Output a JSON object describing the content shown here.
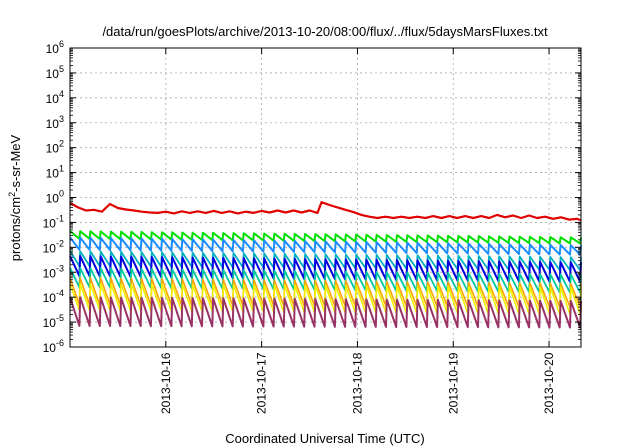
{
  "chart_data": {
    "type": "line",
    "title": "/data/run/goesPlots/archive/2013-10-20/08:00/flux/../flux/5daysMarsFluxes.txt",
    "xlabel": "Coordinated Universal Time (UTC)",
    "ylabel": {
      "prefix": "protons/cm",
      "sup": "2",
      "suffix": "-s-sr-MeV"
    },
    "y_scale": "log",
    "ylim": [
      1e-06,
      1000000.0
    ],
    "y_ticks": [
      {
        "base": "10",
        "exp": "-6"
      },
      {
        "base": "10",
        "exp": "-5"
      },
      {
        "base": "10",
        "exp": "-4"
      },
      {
        "base": "10",
        "exp": "-3"
      },
      {
        "base": "10",
        "exp": "-2"
      },
      {
        "base": "10",
        "exp": "-1"
      },
      {
        "base": "10",
        "exp": "0"
      },
      {
        "base": "10",
        "exp": "1"
      },
      {
        "base": "10",
        "exp": "2"
      },
      {
        "base": "10",
        "exp": "3"
      },
      {
        "base": "10",
        "exp": "4"
      },
      {
        "base": "10",
        "exp": "5"
      },
      {
        "base": "10",
        "exp": "6"
      }
    ],
    "xlim": [
      "2013-10-15T00:00",
      "2013-10-20T08:00"
    ],
    "x_ticks": [
      "2013-10-16",
      "2013-10-17",
      "2013-10-18",
      "2013-10-19",
      "2013-10-20"
    ],
    "grid": true,
    "series": [
      {
        "color": "#e00000",
        "width": 2.2,
        "points": [
          [
            "2013-10-15T00:00",
            0.6
          ],
          [
            "2013-10-15T02:00",
            0.4
          ],
          [
            "2013-10-15T04:00",
            0.3
          ],
          [
            "2013-10-15T06:00",
            0.32
          ],
          [
            "2013-10-15T08:00",
            0.27
          ],
          [
            "2013-10-15T10:00",
            0.55
          ],
          [
            "2013-10-15T12:00",
            0.38
          ],
          [
            "2013-10-15T14:00",
            0.33
          ],
          [
            "2013-10-15T16:00",
            0.3
          ],
          [
            "2013-10-15T18:00",
            0.27
          ],
          [
            "2013-10-15T20:00",
            0.25
          ],
          [
            "2013-10-15T22:00",
            0.24
          ],
          [
            "2013-10-16T00:00",
            0.27
          ],
          [
            "2013-10-16T02:00",
            0.23
          ],
          [
            "2013-10-16T04:00",
            0.28
          ],
          [
            "2013-10-16T06:00",
            0.24
          ],
          [
            "2013-10-16T08:00",
            0.28
          ],
          [
            "2013-10-16T10:00",
            0.24
          ],
          [
            "2013-10-16T12:00",
            0.29
          ],
          [
            "2013-10-16T14:00",
            0.24
          ],
          [
            "2013-10-16T16:00",
            0.28
          ],
          [
            "2013-10-16T18:00",
            0.23
          ],
          [
            "2013-10-16T20:00",
            0.27
          ],
          [
            "2013-10-16T22:00",
            0.24
          ],
          [
            "2013-10-17T00:00",
            0.29
          ],
          [
            "2013-10-17T02:00",
            0.25
          ],
          [
            "2013-10-17T04:00",
            0.3
          ],
          [
            "2013-10-17T06:00",
            0.25
          ],
          [
            "2013-10-17T08:00",
            0.3
          ],
          [
            "2013-10-17T10:00",
            0.25
          ],
          [
            "2013-10-17T12:00",
            0.3
          ],
          [
            "2013-10-17T14:00",
            0.24
          ],
          [
            "2013-10-17T15:00",
            0.65
          ],
          [
            "2013-10-17T17:00",
            0.5
          ],
          [
            "2013-10-17T19:00",
            0.4
          ],
          [
            "2013-10-17T21:00",
            0.32
          ],
          [
            "2013-10-17T23:00",
            0.26
          ],
          [
            "2013-10-18T01:00",
            0.2
          ],
          [
            "2013-10-18T03:00",
            0.17
          ],
          [
            "2013-10-18T05:00",
            0.15
          ],
          [
            "2013-10-18T07:00",
            0.17
          ],
          [
            "2013-10-18T09:00",
            0.15
          ],
          [
            "2013-10-18T11:00",
            0.17
          ],
          [
            "2013-10-18T13:00",
            0.15
          ],
          [
            "2013-10-18T15:00",
            0.17
          ],
          [
            "2013-10-18T17:00",
            0.15
          ],
          [
            "2013-10-18T19:00",
            0.18
          ],
          [
            "2013-10-18T21:00",
            0.15
          ],
          [
            "2013-10-18T23:00",
            0.18
          ],
          [
            "2013-10-19T01:00",
            0.15
          ],
          [
            "2013-10-19T03:00",
            0.18
          ],
          [
            "2013-10-19T05:00",
            0.15
          ],
          [
            "2013-10-19T07:00",
            0.18
          ],
          [
            "2013-10-19T09:00",
            0.15
          ],
          [
            "2013-10-19T11:00",
            0.2
          ],
          [
            "2013-10-19T13:00",
            0.16
          ],
          [
            "2013-10-19T15:00",
            0.19
          ],
          [
            "2013-10-19T17:00",
            0.15
          ],
          [
            "2013-10-19T19:00",
            0.19
          ],
          [
            "2013-10-19T21:00",
            0.15
          ],
          [
            "2013-10-19T23:00",
            0.17
          ],
          [
            "2013-10-20T01:00",
            0.14
          ],
          [
            "2013-10-20T03:00",
            0.16
          ],
          [
            "2013-10-20T05:00",
            0.13
          ],
          [
            "2013-10-20T07:00",
            0.14
          ],
          [
            "2013-10-20T08:00",
            0.12
          ]
        ]
      },
      {
        "color": "#00e000",
        "lo": 0.022,
        "hi": 0.045,
        "lo_end": 0.014,
        "hi_end": 0.025,
        "width": 2
      },
      {
        "color": "#1a8cff",
        "lo": 0.008,
        "hi": 0.025,
        "lo_end": 0.005,
        "hi_end": 0.012,
        "width": 2
      },
      {
        "color": "#00b0c0",
        "lo": 0.0018,
        "hi": 0.007,
        "lo_end": 0.0012,
        "hi_end": 0.004,
        "width": 1.8
      },
      {
        "color": "#0000e0",
        "lo": 0.0007,
        "hi": 0.0045,
        "lo_end": 0.0004,
        "hi_end": 0.0025,
        "width": 2
      },
      {
        "color": "#00c8a0",
        "lo": 0.00025,
        "hi": 0.0015,
        "lo_end": 0.00015,
        "hi_end": 0.0008,
        "width": 1.8
      },
      {
        "color": "#ffa500",
        "lo": 5e-05,
        "hi": 0.0006,
        "lo_end": 4e-05,
        "hi_end": 0.00035,
        "width": 1.6
      },
      {
        "color": "#f0f000",
        "lo": 3e-05,
        "hi": 0.00035,
        "lo_end": 2e-05,
        "hi_end": 0.00025,
        "width": 1.6
      },
      {
        "color": "#993366",
        "lo": 7e-06,
        "hi": 0.0001,
        "lo_end": 6e-06,
        "hi_end": 7e-05,
        "width": 2
      }
    ],
    "sawtooth_teeth": 50
  }
}
